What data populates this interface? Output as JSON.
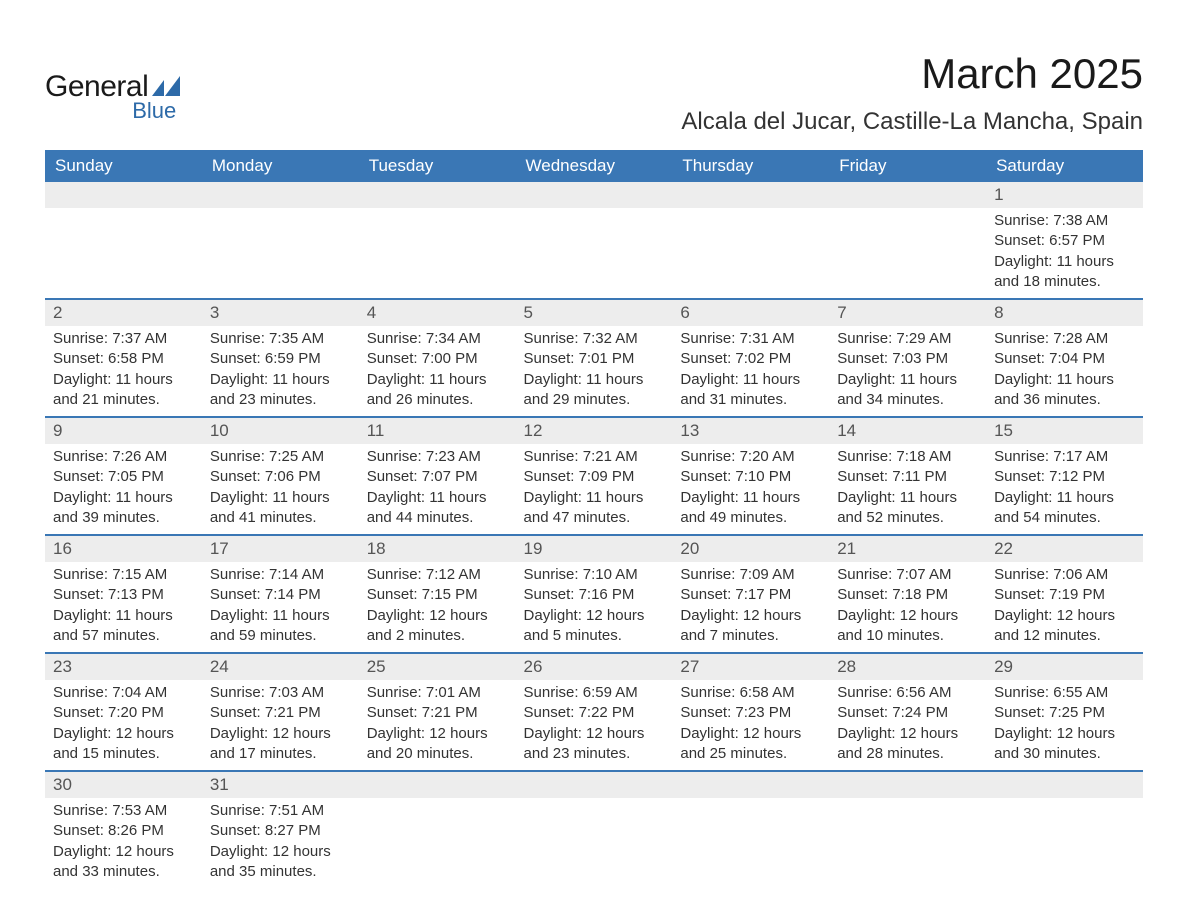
{
  "brand": {
    "name1": "General",
    "name2": "Blue",
    "accent": "#2d6aa8"
  },
  "title": "March 2025",
  "location": "Alcala del Jucar, Castille-La Mancha, Spain",
  "colors": {
    "header_bg": "#3a77b5",
    "header_text": "#ffffff",
    "daynum_bg": "#ededed",
    "row_divider": "#3a77b5",
    "body_text": "#333333",
    "page_bg": "#ffffff"
  },
  "weekdays": [
    "Sunday",
    "Monday",
    "Tuesday",
    "Wednesday",
    "Thursday",
    "Friday",
    "Saturday"
  ],
  "weeks": [
    [
      null,
      null,
      null,
      null,
      null,
      null,
      {
        "n": "1",
        "sunrise": "7:38 AM",
        "sunset": "6:57 PM",
        "daylight": "11 hours and 18 minutes."
      }
    ],
    [
      {
        "n": "2",
        "sunrise": "7:37 AM",
        "sunset": "6:58 PM",
        "daylight": "11 hours and 21 minutes."
      },
      {
        "n": "3",
        "sunrise": "7:35 AM",
        "sunset": "6:59 PM",
        "daylight": "11 hours and 23 minutes."
      },
      {
        "n": "4",
        "sunrise": "7:34 AM",
        "sunset": "7:00 PM",
        "daylight": "11 hours and 26 minutes."
      },
      {
        "n": "5",
        "sunrise": "7:32 AM",
        "sunset": "7:01 PM",
        "daylight": "11 hours and 29 minutes."
      },
      {
        "n": "6",
        "sunrise": "7:31 AM",
        "sunset": "7:02 PM",
        "daylight": "11 hours and 31 minutes."
      },
      {
        "n": "7",
        "sunrise": "7:29 AM",
        "sunset": "7:03 PM",
        "daylight": "11 hours and 34 minutes."
      },
      {
        "n": "8",
        "sunrise": "7:28 AM",
        "sunset": "7:04 PM",
        "daylight": "11 hours and 36 minutes."
      }
    ],
    [
      {
        "n": "9",
        "sunrise": "7:26 AM",
        "sunset": "7:05 PM",
        "daylight": "11 hours and 39 minutes."
      },
      {
        "n": "10",
        "sunrise": "7:25 AM",
        "sunset": "7:06 PM",
        "daylight": "11 hours and 41 minutes."
      },
      {
        "n": "11",
        "sunrise": "7:23 AM",
        "sunset": "7:07 PM",
        "daylight": "11 hours and 44 minutes."
      },
      {
        "n": "12",
        "sunrise": "7:21 AM",
        "sunset": "7:09 PM",
        "daylight": "11 hours and 47 minutes."
      },
      {
        "n": "13",
        "sunrise": "7:20 AM",
        "sunset": "7:10 PM",
        "daylight": "11 hours and 49 minutes."
      },
      {
        "n": "14",
        "sunrise": "7:18 AM",
        "sunset": "7:11 PM",
        "daylight": "11 hours and 52 minutes."
      },
      {
        "n": "15",
        "sunrise": "7:17 AM",
        "sunset": "7:12 PM",
        "daylight": "11 hours and 54 minutes."
      }
    ],
    [
      {
        "n": "16",
        "sunrise": "7:15 AM",
        "sunset": "7:13 PM",
        "daylight": "11 hours and 57 minutes."
      },
      {
        "n": "17",
        "sunrise": "7:14 AM",
        "sunset": "7:14 PM",
        "daylight": "11 hours and 59 minutes."
      },
      {
        "n": "18",
        "sunrise": "7:12 AM",
        "sunset": "7:15 PM",
        "daylight": "12 hours and 2 minutes."
      },
      {
        "n": "19",
        "sunrise": "7:10 AM",
        "sunset": "7:16 PM",
        "daylight": "12 hours and 5 minutes."
      },
      {
        "n": "20",
        "sunrise": "7:09 AM",
        "sunset": "7:17 PM",
        "daylight": "12 hours and 7 minutes."
      },
      {
        "n": "21",
        "sunrise": "7:07 AM",
        "sunset": "7:18 PM",
        "daylight": "12 hours and 10 minutes."
      },
      {
        "n": "22",
        "sunrise": "7:06 AM",
        "sunset": "7:19 PM",
        "daylight": "12 hours and 12 minutes."
      }
    ],
    [
      {
        "n": "23",
        "sunrise": "7:04 AM",
        "sunset": "7:20 PM",
        "daylight": "12 hours and 15 minutes."
      },
      {
        "n": "24",
        "sunrise": "7:03 AM",
        "sunset": "7:21 PM",
        "daylight": "12 hours and 17 minutes."
      },
      {
        "n": "25",
        "sunrise": "7:01 AM",
        "sunset": "7:21 PM",
        "daylight": "12 hours and 20 minutes."
      },
      {
        "n": "26",
        "sunrise": "6:59 AM",
        "sunset": "7:22 PM",
        "daylight": "12 hours and 23 minutes."
      },
      {
        "n": "27",
        "sunrise": "6:58 AM",
        "sunset": "7:23 PM",
        "daylight": "12 hours and 25 minutes."
      },
      {
        "n": "28",
        "sunrise": "6:56 AM",
        "sunset": "7:24 PM",
        "daylight": "12 hours and 28 minutes."
      },
      {
        "n": "29",
        "sunrise": "6:55 AM",
        "sunset": "7:25 PM",
        "daylight": "12 hours and 30 minutes."
      }
    ],
    [
      {
        "n": "30",
        "sunrise": "7:53 AM",
        "sunset": "8:26 PM",
        "daylight": "12 hours and 33 minutes."
      },
      {
        "n": "31",
        "sunrise": "7:51 AM",
        "sunset": "8:27 PM",
        "daylight": "12 hours and 35 minutes."
      },
      null,
      null,
      null,
      null,
      null
    ]
  ],
  "labels": {
    "sunrise": "Sunrise:",
    "sunset": "Sunset:",
    "daylight": "Daylight:"
  }
}
